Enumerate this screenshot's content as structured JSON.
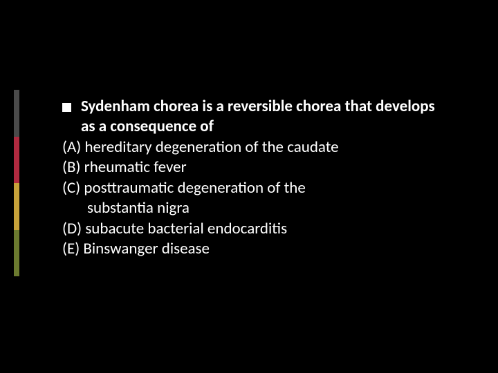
{
  "accent_colors": [
    "#4a4a4a",
    "#b0293f",
    "#c7a23a",
    "#6b7a2f"
  ],
  "question": {
    "stem": "Sydenham chorea is a reversible  chorea that develops as a consequence of",
    "options": {
      "A": "hereditary degeneration of the caudate",
      "B": "rheumatic fever",
      "C_line1": "posttraumatic degeneration of the",
      "C_line2": "substantia nigra",
      "D": "subacute bacterial endocarditis",
      "E": "Binswanger disease"
    }
  },
  "text_color": "#ffffff",
  "background_color": "#000000",
  "font_size_pt": 17
}
